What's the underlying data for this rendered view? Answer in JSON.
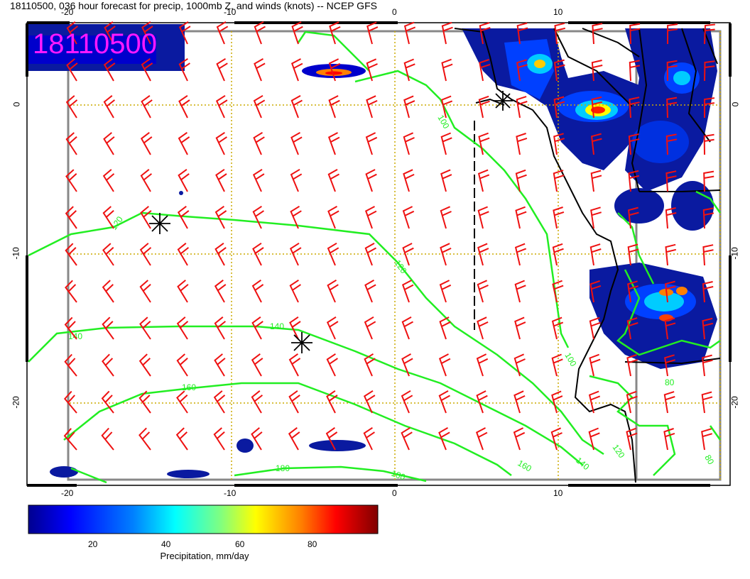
{
  "title": "18110500, 036 hour forecast for precip, 1000mb Z, and winds (knots) -- NCEP GFS",
  "stamp": "18110500",
  "axes": {
    "top_ticks": [
      "-20",
      "-10",
      "0",
      "10"
    ],
    "bottom_ticks": [
      "-20",
      "-10",
      "0",
      "10"
    ],
    "left_ticks": [
      "0",
      "-10",
      "-20"
    ],
    "right_ticks": [
      "0",
      "-10",
      "-20"
    ]
  },
  "colorbar": {
    "label": "Precipitation, mm/day",
    "ticks": [
      "20",
      "40",
      "60",
      "80"
    ],
    "colors": [
      "#00008f",
      "#0000ff",
      "#0080ff",
      "#00ffff",
      "#80ff80",
      "#ffff00",
      "#ff8000",
      "#ff0000",
      "#800000"
    ]
  },
  "contours": [
    {
      "label": "100"
    },
    {
      "label": "120"
    },
    {
      "label": "140"
    },
    {
      "label": "160"
    },
    {
      "label": "180"
    },
    {
      "label": "80"
    }
  ],
  "colors": {
    "contour": "#22ee22",
    "barb": "#ee1111",
    "grid": "#ccaa00",
    "stamp": "#ff19ff"
  }
}
